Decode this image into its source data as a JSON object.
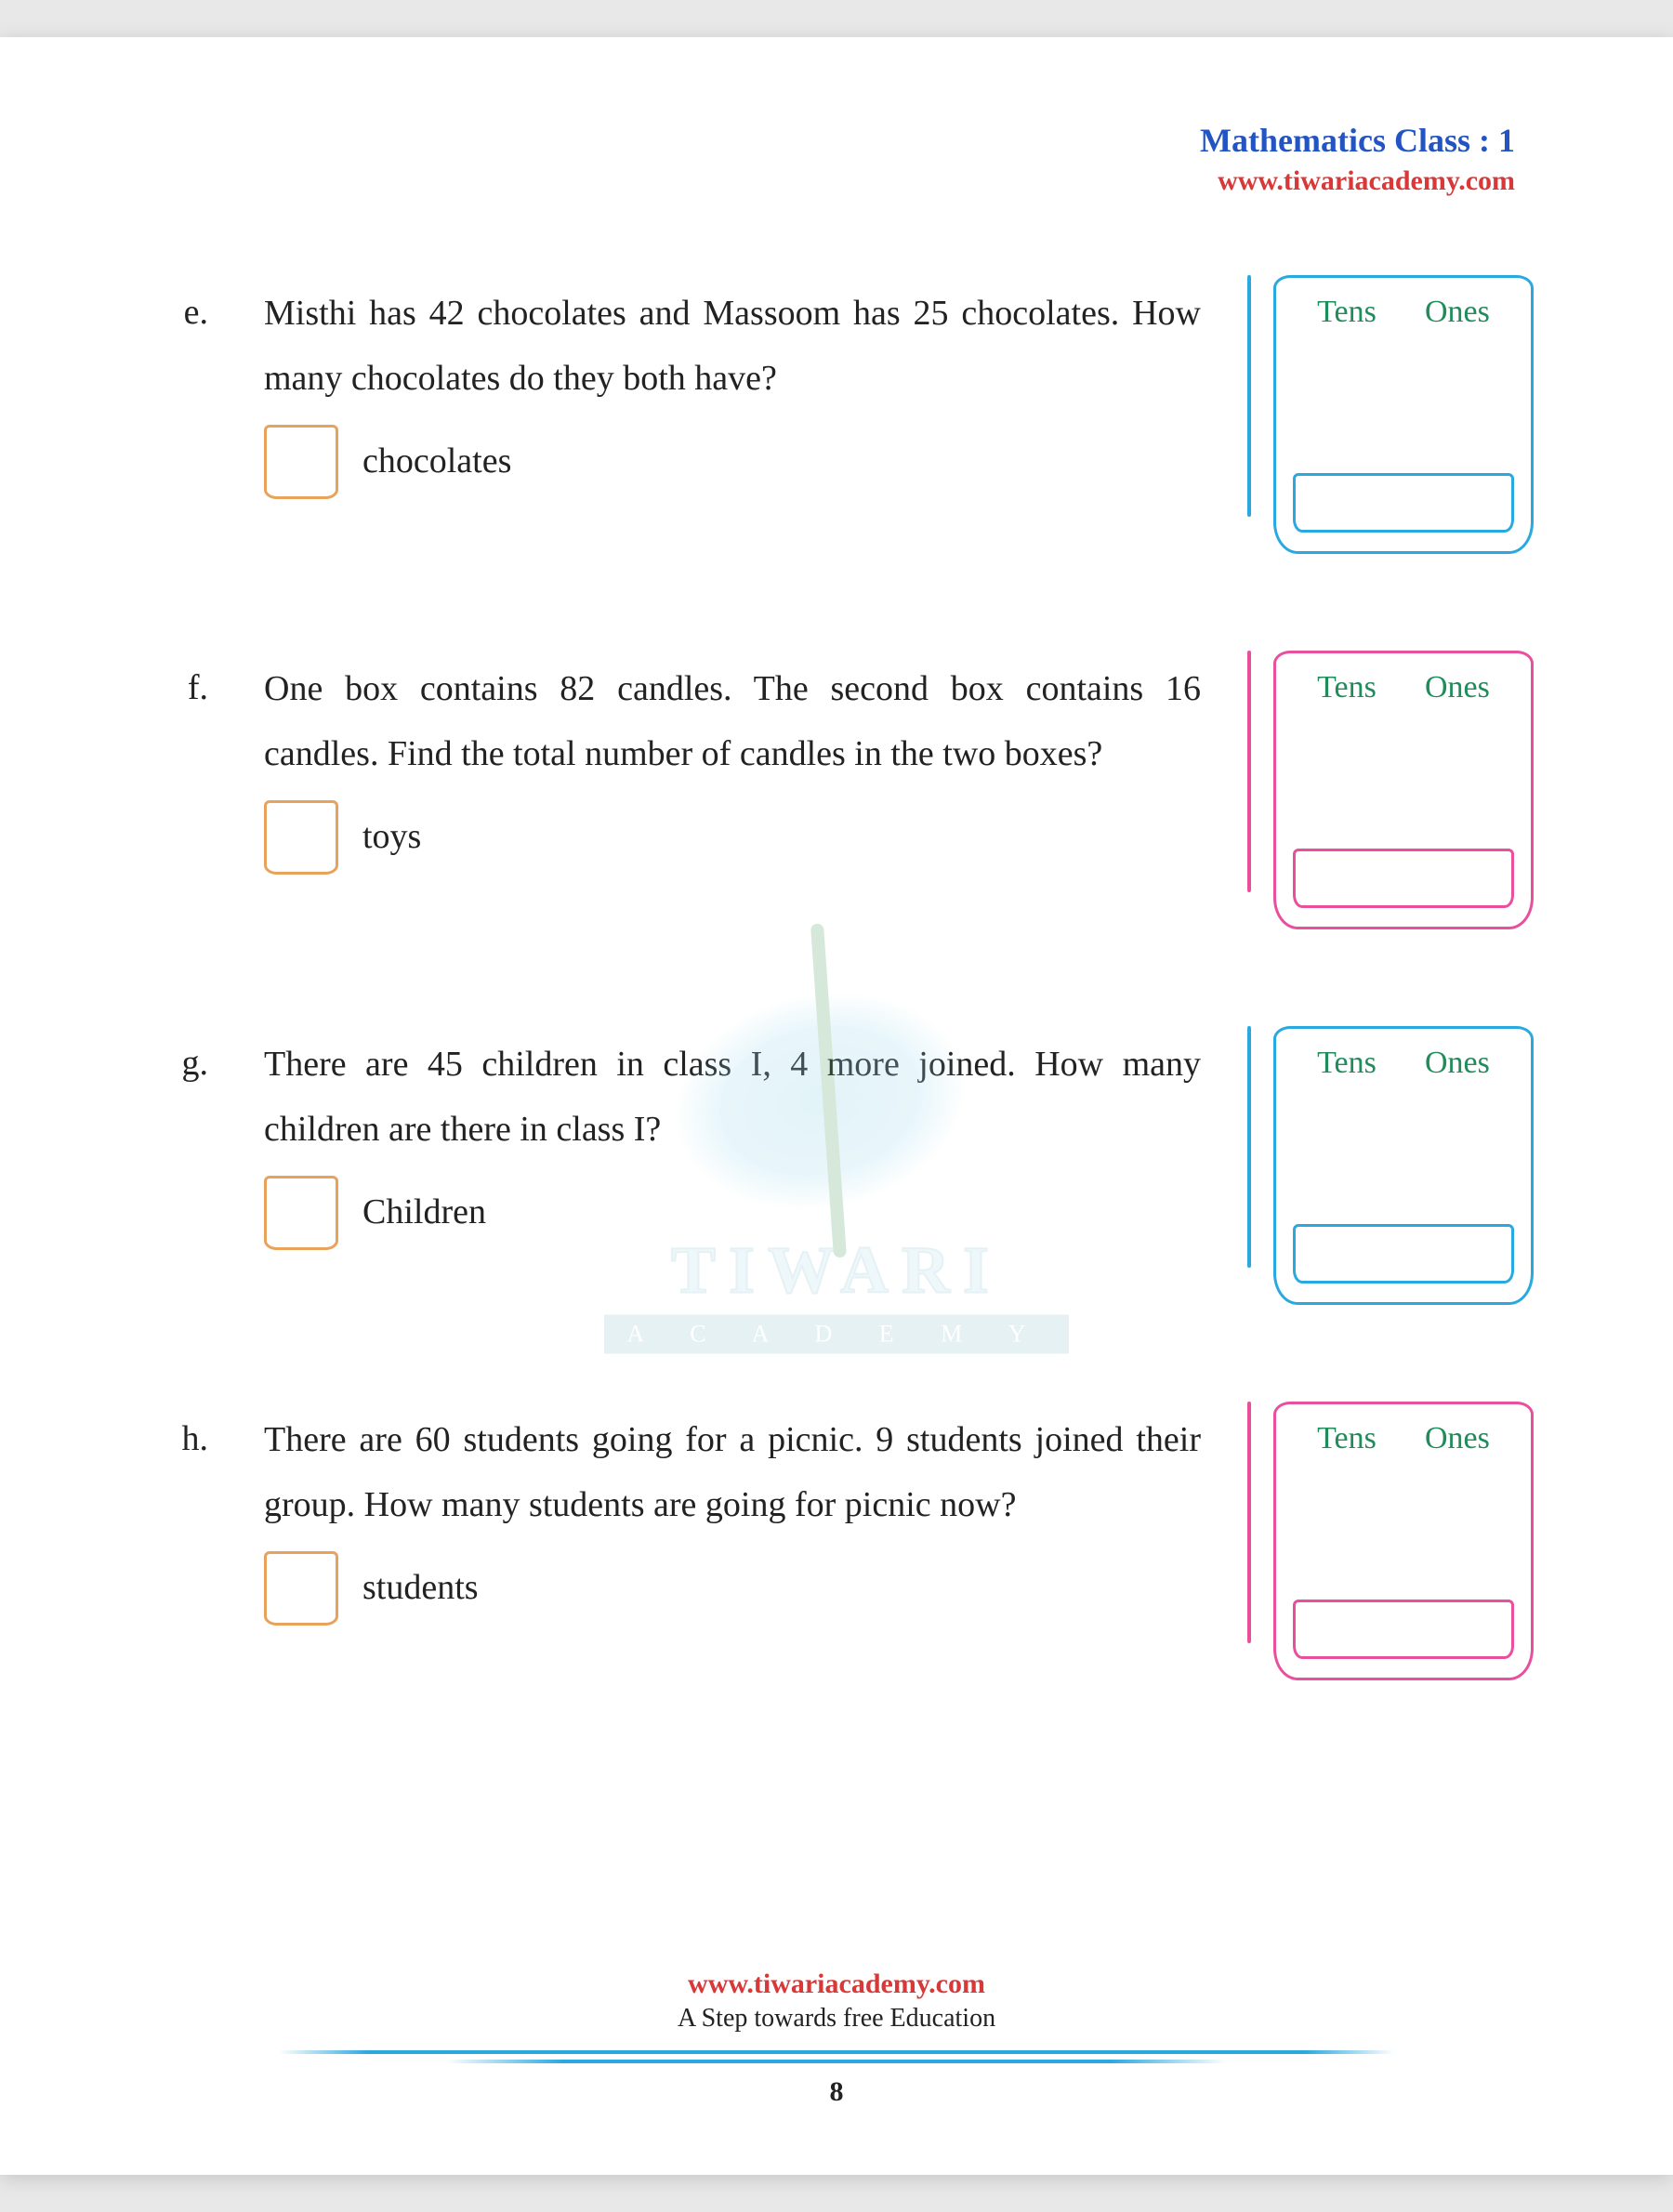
{
  "header": {
    "title": "Mathematics Class : 1",
    "link": "www.tiwariacademy.com"
  },
  "tensOnes": {
    "tens": "Tens",
    "ones": "Ones"
  },
  "exercises": [
    {
      "letter": "e.",
      "text": "Misthi has 42 chocolates and Massoom has 25 chocolates. How many chocolates do they both have?",
      "answer_label": "chocolates",
      "box_color": "blue"
    },
    {
      "letter": "f.",
      "text": "One box contains 82 candles. The second box contains 16 candles. Find the total number of candles in the two boxes?",
      "answer_label": "toys",
      "box_color": "pink"
    },
    {
      "letter": "g.",
      "text": "There are 45 children in class I, 4 more joined. How many children are there in class I?",
      "answer_label": "Children",
      "box_color": "blue"
    },
    {
      "letter": "h.",
      "text": "There are 60 students going for a picnic. 9 students joined their group. How many students are going for picnic now?",
      "answer_label": "students",
      "box_color": "pink"
    }
  ],
  "watermark": {
    "line1": "TIWARI",
    "line2": "A C A D E M Y"
  },
  "footer": {
    "link": "www.tiwariacademy.com",
    "tag": "A Step towards free Education",
    "page": "8"
  },
  "colors": {
    "blue": "#2aa8e0",
    "pink": "#e84f9c",
    "orange": "#e8a25c",
    "green": "#1f8c5a",
    "title_blue": "#2254c4",
    "link_red": "#d93838"
  }
}
